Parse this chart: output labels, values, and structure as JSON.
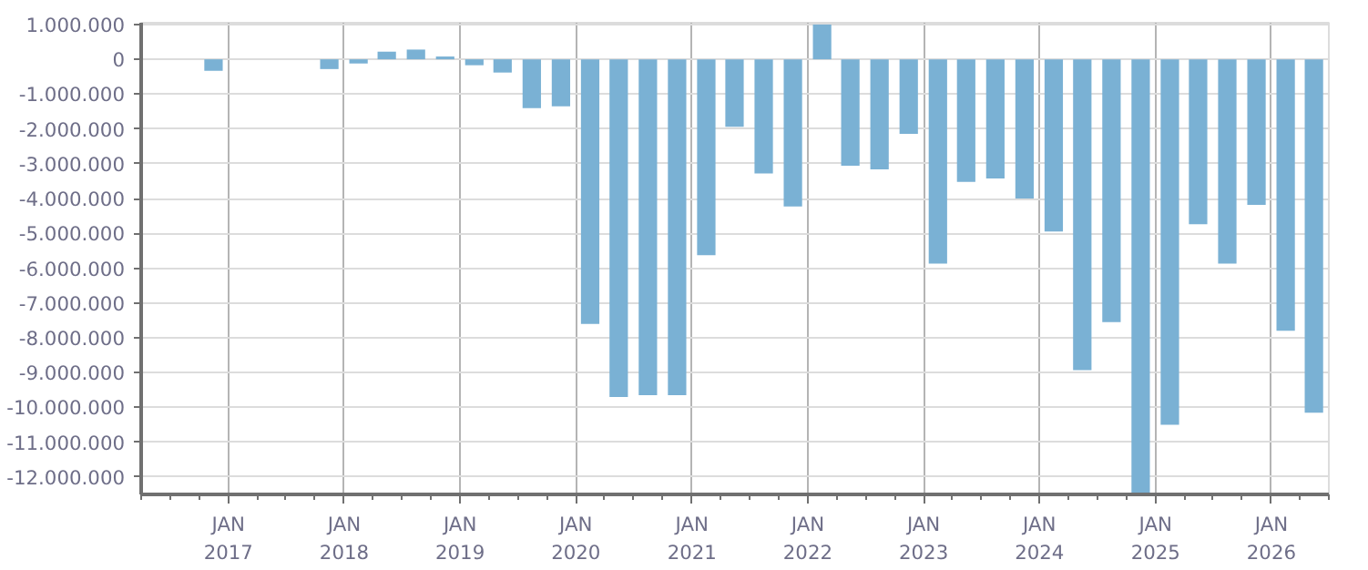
{
  "chart_data": {
    "type": "bar",
    "color": "#7ab1d4",
    "x": [
      "2016-11-15",
      "2017-11-15",
      "2018-02-15",
      "2018-05-15",
      "2018-08-15",
      "2018-11-15",
      "2019-02-15",
      "2019-05-15",
      "2019-08-15",
      "2019-11-15",
      "2020-02-15",
      "2020-05-15",
      "2020-08-15",
      "2020-11-15",
      "2021-02-15",
      "2021-05-15",
      "2021-08-15",
      "2021-11-15",
      "2022-02-15",
      "2022-05-15",
      "2022-08-15",
      "2022-11-15",
      "2023-02-15",
      "2023-05-15",
      "2023-08-15",
      "2023-11-15",
      "2024-02-15",
      "2024-05-15",
      "2024-08-15",
      "2024-11-15",
      "2025-02-15",
      "2025-05-15",
      "2025-08-15",
      "2025-11-15",
      "2026-02-15",
      "2026-05-15"
    ],
    "values": [
      -330000,
      -280000,
      -120000,
      220000,
      280000,
      80000,
      -170000,
      -380000,
      -1400000,
      -1350000,
      -7600000,
      -9700000,
      -9650000,
      -9650000,
      -5630000,
      -1940000,
      -3280000,
      -4230000,
      1000000,
      -3060000,
      -3160000,
      -2140000,
      -5870000,
      -3520000,
      -3420000,
      -4000000,
      -4950000,
      -8930000,
      -7550000,
      -12500000,
      -10500000,
      -4740000,
      -5870000,
      -4180000,
      -7800000,
      -10150000
    ],
    "xlim": [
      "2016-04-01",
      "2026-07-01"
    ],
    "xticks": [
      {
        "value": "2017-01-01",
        "label": "JAN\n2017"
      },
      {
        "value": "2018-01-01",
        "label": "JAN\n2018"
      },
      {
        "value": "2019-01-01",
        "label": "JAN\n2019"
      },
      {
        "value": "2020-01-01",
        "label": "JAN\n2020"
      },
      {
        "value": "2021-01-01",
        "label": "JAN\n2021"
      },
      {
        "value": "2022-01-01",
        "label": "JAN\n2022"
      },
      {
        "value": "2023-01-01",
        "label": "JAN\n2023"
      },
      {
        "value": "2024-01-01",
        "label": "JAN\n2024"
      },
      {
        "value": "2025-01-01",
        "label": "JAN\n2025"
      },
      {
        "value": "2026-01-01",
        "label": "JAN\n2026"
      }
    ],
    "ylim": [
      -12500000,
      1050000
    ],
    "yticks": [
      {
        "value": 1000000,
        "label": "1.000.000"
      },
      {
        "value": 0,
        "label": "0"
      },
      {
        "value": -1000000,
        "label": "-1.000.000"
      },
      {
        "value": -2000000,
        "label": "-2.000.000"
      },
      {
        "value": -3000000,
        "label": "-3.000.000"
      },
      {
        "value": -4000000,
        "label": "-4.000.000"
      },
      {
        "value": -5000000,
        "label": "-5.000.000"
      },
      {
        "value": -6000000,
        "label": "-6.000.000"
      },
      {
        "value": -7000000,
        "label": "-7.000.000"
      },
      {
        "value": -8000000,
        "label": "-8.000.000"
      },
      {
        "value": -9000000,
        "label": "-9.000.000"
      },
      {
        "value": -10000000,
        "label": "-10.000.000"
      },
      {
        "value": -11000000,
        "label": "-11.000.000"
      },
      {
        "value": -12000000,
        "label": "-12.000.000"
      }
    ],
    "grid": true
  }
}
